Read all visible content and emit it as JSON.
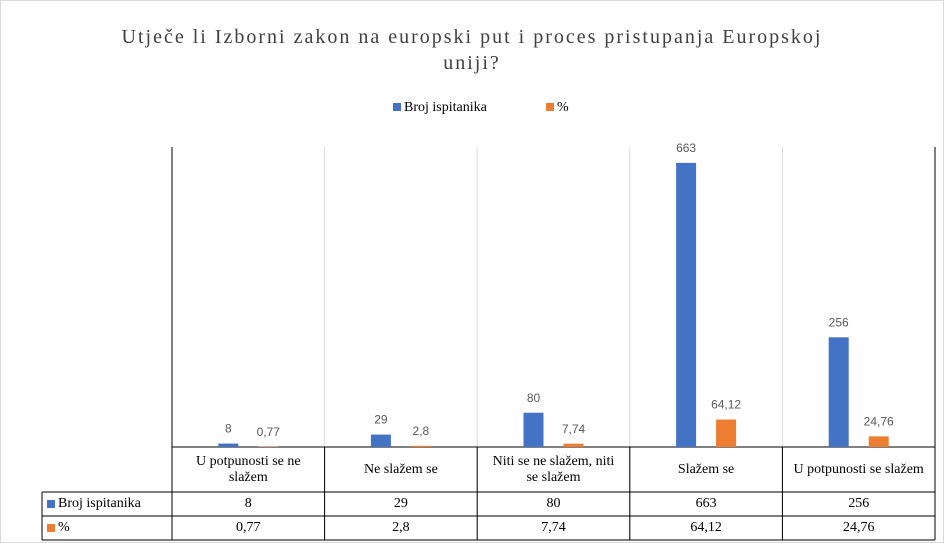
{
  "chart_data": {
    "type": "bar",
    "title": "Utječe li Izborni zakon na europski put i proces pristupanja Europskoj uniji?",
    "categories": [
      "U potpunosti se ne slažem",
      "Ne slažem se",
      "Niti se ne slažem, niti se slažem",
      "Slažem se",
      "U potpunosti se slažem"
    ],
    "series": [
      {
        "name": "Broj ispitanika",
        "color": "#4472c4",
        "values": [
          8,
          29,
          80,
          663,
          256
        ]
      },
      {
        "name": "%",
        "color": "#ed7d31",
        "values": [
          0.77,
          2.8,
          7.74,
          64.12,
          24.76
        ],
        "value_labels": [
          "0,77",
          "2,8",
          "7,74",
          "64,12",
          "24,76"
        ]
      }
    ],
    "ylim": [
      0,
      700
    ],
    "legend": "top"
  }
}
